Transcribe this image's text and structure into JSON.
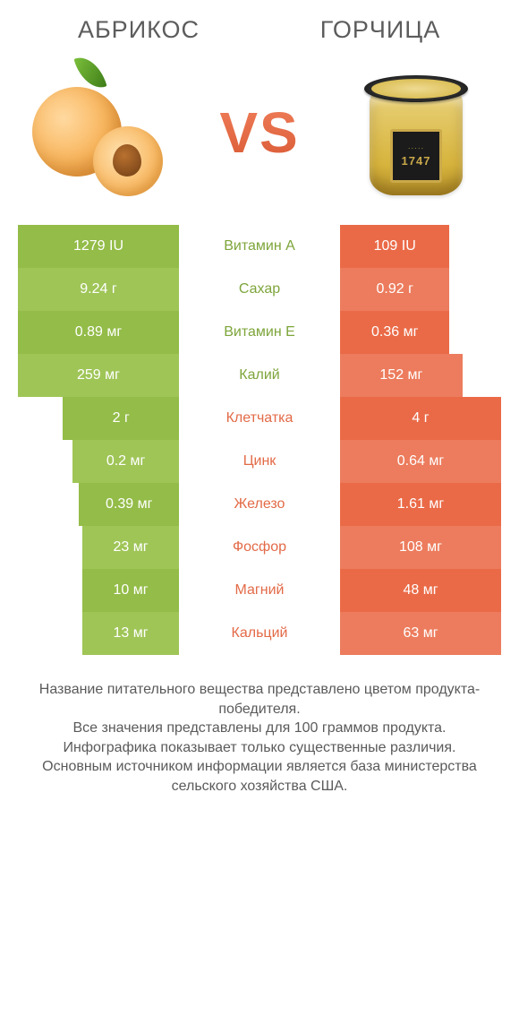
{
  "colors": {
    "green_main": "#93bc48",
    "green_alt": "#9fc557",
    "orange_main": "#ea6a47",
    "orange_alt": "#ec7c5d",
    "mid_green_text": "#7da53a",
    "mid_orange_text": "#e36a47",
    "white": "#ffffff",
    "value_text": "#ffffff"
  },
  "header": {
    "left_title": "АБРИКОС",
    "right_title": "ГОРЧИЦА",
    "vs": "VS"
  },
  "rows": [
    {
      "nutrient": "Витамин A",
      "left": "1279 IU",
      "right": "109 IU",
      "winner": "left",
      "left_pct": 100,
      "right_pct": 68
    },
    {
      "nutrient": "Сахар",
      "left": "9.24 г",
      "right": "0.92 г",
      "winner": "left",
      "left_pct": 100,
      "right_pct": 68
    },
    {
      "nutrient": "Витамин E",
      "left": "0.89 мг",
      "right": "0.36 мг",
      "winner": "left",
      "left_pct": 100,
      "right_pct": 68
    },
    {
      "nutrient": "Калий",
      "left": "259 мг",
      "right": "152 мг",
      "winner": "left",
      "left_pct": 100,
      "right_pct": 76
    },
    {
      "nutrient": "Клетчатка",
      "left": "2 г",
      "right": "4 г",
      "winner": "right",
      "left_pct": 72,
      "right_pct": 100
    },
    {
      "nutrient": "Цинк",
      "left": "0.2 мг",
      "right": "0.64 мг",
      "winner": "right",
      "left_pct": 66,
      "right_pct": 100
    },
    {
      "nutrient": "Железо",
      "left": "0.39 мг",
      "right": "1.61 мг",
      "winner": "right",
      "left_pct": 62,
      "right_pct": 100
    },
    {
      "nutrient": "Фосфор",
      "left": "23 мг",
      "right": "108 мг",
      "winner": "right",
      "left_pct": 60,
      "right_pct": 100
    },
    {
      "nutrient": "Магний",
      "left": "10 мг",
      "right": "48 мг",
      "winner": "right",
      "left_pct": 60,
      "right_pct": 100
    },
    {
      "nutrient": "Кальций",
      "left": "13 мг",
      "right": "63 мг",
      "winner": "right",
      "left_pct": 60,
      "right_pct": 100
    }
  ],
  "footnote_lines": [
    "Название питательного вещества представлено цветом продукта-победителя.",
    "Все значения представлены для 100 граммов продукта.",
    "Инфографика показывает только существенные различия.",
    "Основным источником информации является база министерства сельского хозяйства США."
  ],
  "jar_label_year": "1747"
}
